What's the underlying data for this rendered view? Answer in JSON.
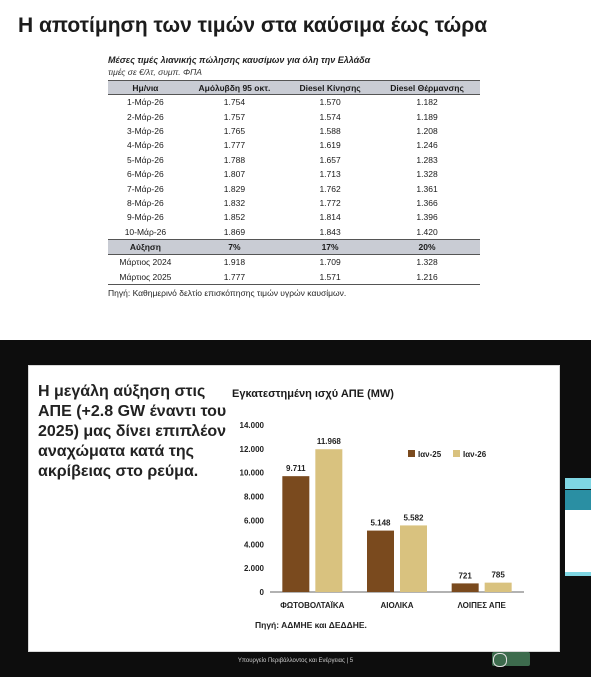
{
  "headline": "Η αποτίμηση των τιμών στα καύσιμα έως τώρα",
  "table": {
    "title": "Μέσες τιμές λιανικής πώλησης καυσίμων για όλη την Ελλάδα",
    "subtitle": "τιμές σε €/λτ, συμπ. ΦΠΑ",
    "headers": [
      "Ημ/νια",
      "Αμόλυβδη 95 οκτ.",
      "Diesel Κίνησης",
      "Diesel Θέρμανσης"
    ],
    "rows": [
      [
        "1-Μάρ-26",
        "1.754",
        "1.570",
        "1.182"
      ],
      [
        "2-Μάρ-26",
        "1.757",
        "1.574",
        "1.189"
      ],
      [
        "3-Μάρ-26",
        "1.765",
        "1.588",
        "1.208"
      ],
      [
        "4-Μάρ-26",
        "1.777",
        "1.619",
        "1.246"
      ],
      [
        "5-Μάρ-26",
        "1.788",
        "1.657",
        "1.283"
      ],
      [
        "6-Μάρ-26",
        "1.807",
        "1.713",
        "1.328"
      ],
      [
        "7-Μάρ-26",
        "1.829",
        "1.762",
        "1.361"
      ],
      [
        "8-Μάρ-26",
        "1.832",
        "1.772",
        "1.366"
      ],
      [
        "9-Μάρ-26",
        "1.852",
        "1.814",
        "1.396"
      ],
      [
        "10-Μάρ-26",
        "1.869",
        "1.843",
        "1.420"
      ]
    ],
    "increase_row": [
      "Αύξηση",
      "7%",
      "17%",
      "20%"
    ],
    "ref_rows": [
      [
        "Μάρτιος 2024",
        "1.918",
        "1.709",
        "1.328"
      ],
      [
        "Μάρτιος 2025",
        "1.777",
        "1.571",
        "1.216"
      ]
    ],
    "source": "Πηγή: Καθημερινό δελτίο επισκόπησης τιμών υγρών καυσίμων."
  },
  "slide": {
    "left_text": "Η μεγάλη αύξηση στις ΑΠΕ (+2.8 GW έναντι του 2025) μας δίνει επιπλέον αναχώματα κατά της ακρίβειας στο ρεύμα.",
    "footer": "Υπουργείο Περιβάλλοντος και Ενέργειας | 5"
  },
  "colors": {
    "series_a": "#7a4a1e",
    "series_b": "#d9c27f",
    "slide_bg": "#0d0d0d",
    "header_gray": "#c9ccd4"
  },
  "chart_data": {
    "type": "bar",
    "title": "Εγκατεστημένη ισχύ ΑΠΕ (MW)",
    "categories": [
      "ΦΩΤΟΒΟΛΤΑΪΚΑ",
      "ΑΙΟΛΙΚΑ",
      "ΛΟΙΠΕΣ ΑΠΕ"
    ],
    "series": [
      {
        "name": "Ιαν-25",
        "values": [
          9711,
          5148,
          721
        ],
        "labels": [
          "9.711",
          "5.148",
          "721"
        ]
      },
      {
        "name": "Ιαν-26",
        "values": [
          11968,
          5582,
          785
        ],
        "labels": [
          "11.968",
          "5.582",
          "785"
        ]
      }
    ],
    "ylim": [
      0,
      14000
    ],
    "yticks": [
      "0",
      "2.000",
      "4.000",
      "6.000",
      "8.000",
      "10.000",
      "12.000",
      "14.000"
    ],
    "legend_position": "top-right",
    "source": "Πηγή: ΑΔΜΗΕ και ΔΕΔΔΗΕ."
  }
}
